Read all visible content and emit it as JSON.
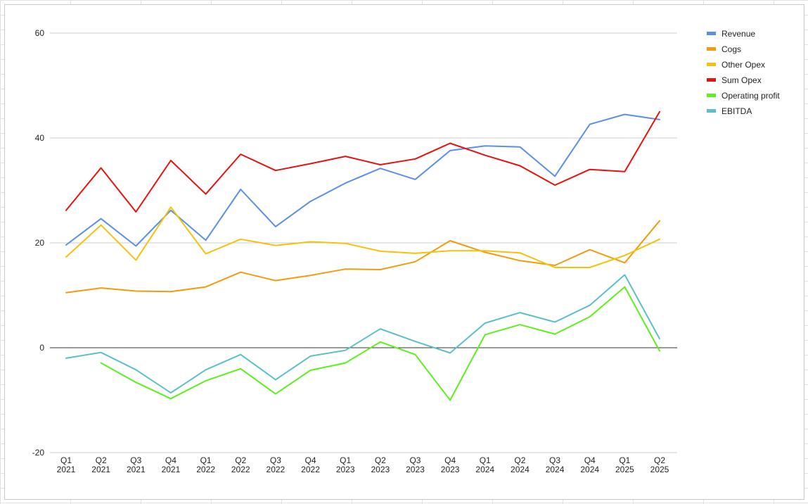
{
  "chart_data": {
    "type": "line",
    "categories": [
      [
        "Q1",
        "2021"
      ],
      [
        "Q2",
        "2021"
      ],
      [
        "Q3",
        "2021"
      ],
      [
        "Q4",
        "2021"
      ],
      [
        "Q1",
        "2022"
      ],
      [
        "Q2",
        "2022"
      ],
      [
        "Q3",
        "2022"
      ],
      [
        "Q4",
        "2022"
      ],
      [
        "Q1",
        "2023"
      ],
      [
        "Q2",
        "2023"
      ],
      [
        "Q3",
        "2023"
      ],
      [
        "Q4",
        "2023"
      ],
      [
        "Q1",
        "2024"
      ],
      [
        "Q2",
        "2024"
      ],
      [
        "Q3",
        "2024"
      ],
      [
        "Q4",
        "2024"
      ],
      [
        "Q1",
        "2025"
      ],
      [
        "Q2",
        "2025"
      ]
    ],
    "ylim": [
      -20,
      60
    ],
    "yticks": [
      -20,
      0,
      20,
      40,
      60
    ],
    "grid": true,
    "legend_position": "top-right",
    "series": [
      {
        "name": "Revenue",
        "color": "#5b8ee6",
        "values": [
          19.6,
          24.6,
          19.4,
          26.2,
          20.5,
          30.2,
          23.1,
          27.9,
          31.4,
          34.2,
          32.1,
          37.6,
          38.5,
          38.3,
          32.7,
          42.6,
          44.5,
          43.5
        ]
      },
      {
        "name": "Cogs",
        "color": "#f29b0e",
        "values": [
          10.5,
          11.4,
          10.8,
          10.7,
          11.6,
          14.4,
          12.8,
          13.8,
          15.0,
          14.9,
          16.4,
          20.4,
          18.2,
          16.6,
          15.7,
          18.7,
          16.2,
          24.2
        ]
      },
      {
        "name": "Other Opex",
        "color": "#f4c20d",
        "values": [
          17.3,
          23.4,
          16.7,
          26.8,
          17.9,
          20.7,
          19.5,
          20.2,
          19.9,
          18.4,
          18.0,
          18.5,
          18.5,
          18.1,
          15.3,
          15.3,
          17.6,
          20.7
        ]
      },
      {
        "name": "Sum Opex",
        "color": "#e8110e",
        "values": [
          26.2,
          34.3,
          25.9,
          35.7,
          29.3,
          36.9,
          33.8,
          35.1,
          36.5,
          34.9,
          36.0,
          39.0,
          36.7,
          34.7,
          31.0,
          34.0,
          33.6,
          45.0
        ]
      },
      {
        "name": "Operating profit",
        "color": "#5cf01c",
        "values": [
          null,
          -2.9,
          -6.6,
          -9.7,
          -6.3,
          -4.0,
          -8.8,
          -4.3,
          -2.9,
          1.1,
          -1.3,
          -10.0,
          2.5,
          4.4,
          2.6,
          5.9,
          11.6,
          -0.6
        ]
      },
      {
        "name": "EBITDA",
        "color": "#5bbfc8",
        "values": [
          -2.0,
          -0.9,
          -4.2,
          -8.6,
          -4.2,
          -1.3,
          -6.1,
          -1.6,
          -0.5,
          3.6,
          1.2,
          -1.0,
          4.7,
          6.7,
          4.9,
          8.1,
          13.9,
          1.7
        ]
      }
    ]
  }
}
